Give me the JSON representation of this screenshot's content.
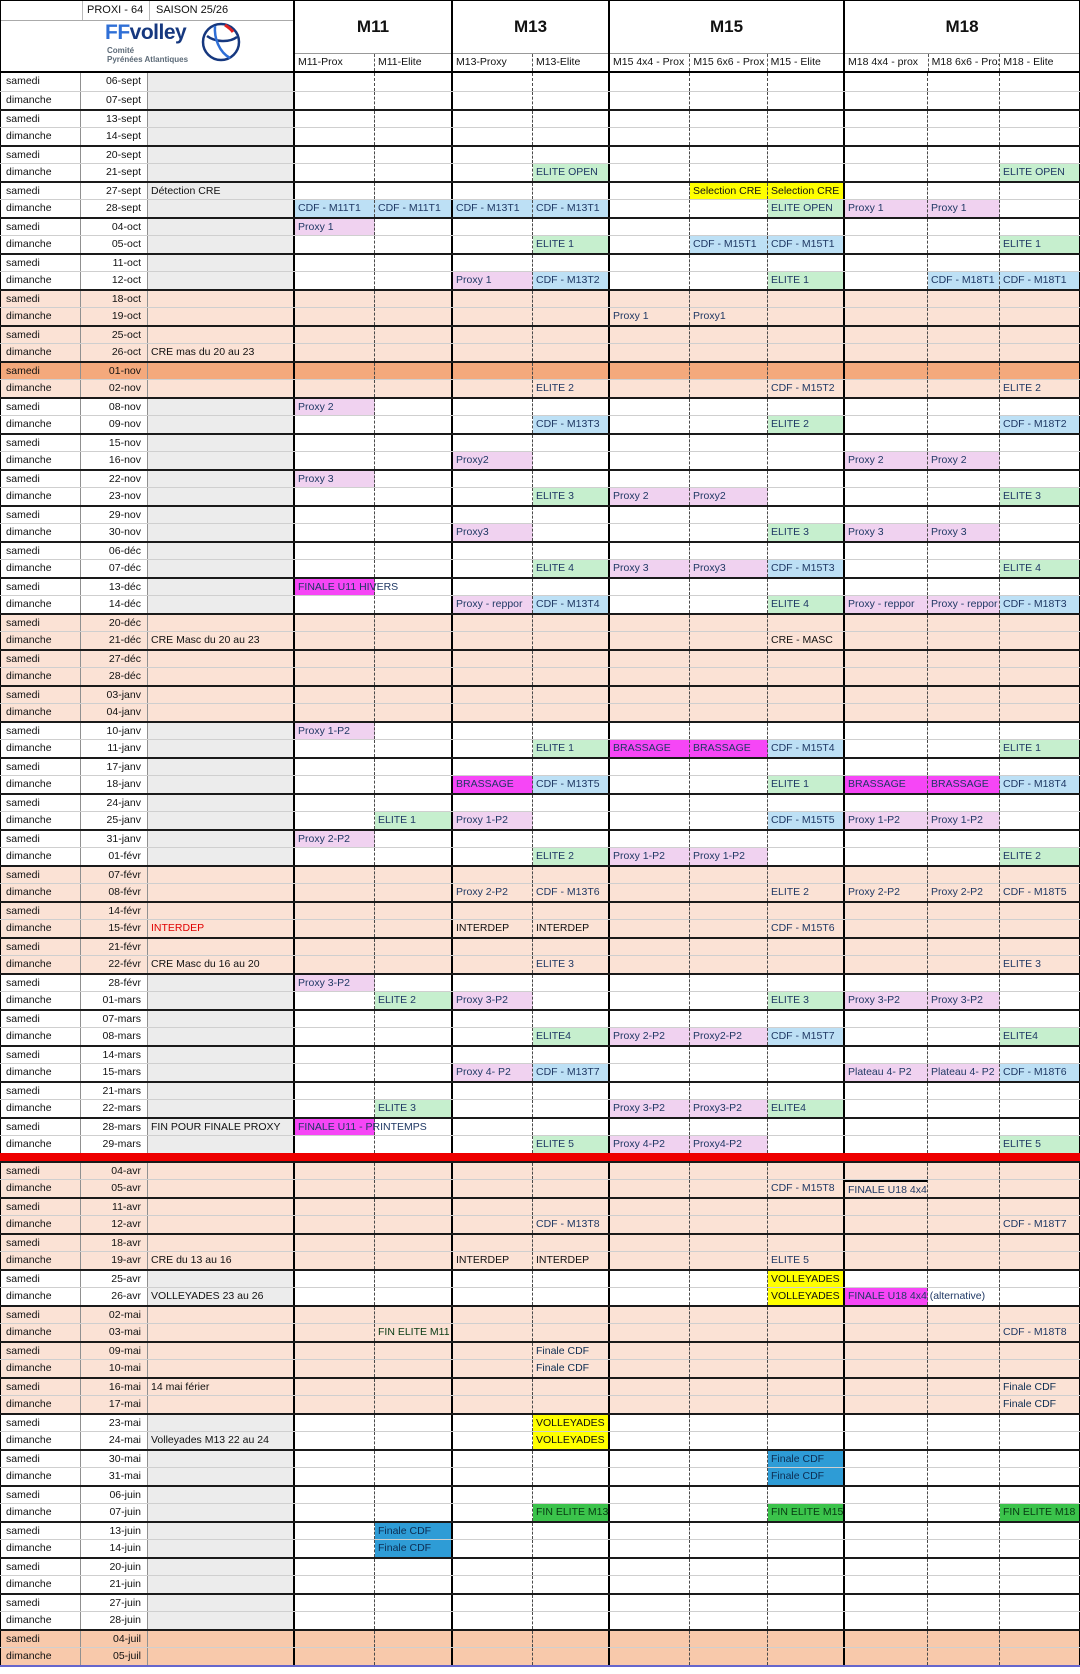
{
  "header": {
    "title_left": "PROXI - 64",
    "title_right": "SAISON 25/26",
    "logo": {
      "brand_ff": "FF",
      "brand_volley": "volley",
      "sub1": "Comité",
      "sub2": "Pyrénées Atlantiques"
    },
    "groups": [
      {
        "label": "M11",
        "cols": [
          "M11-Prox",
          "M11-Elite"
        ]
      },
      {
        "label": "M13",
        "cols": [
          "M13-Proxy",
          "M13-Elite"
        ]
      },
      {
        "label": "M15",
        "cols": [
          "M15 4x4 - Prox",
          "M15 6x6 - Prox",
          "M15 - Elite"
        ]
      },
      {
        "label": "M18",
        "cols": [
          "M18 4x4 - prox",
          "M18 6x6 - Prox",
          "M18 - Elite"
        ]
      }
    ]
  },
  "colors": {
    "vacation": "#fbe2d5",
    "vacation_dark": "#f4a97c",
    "vacation_july": "#f8c9ab",
    "notes_grey": "#ececec",
    "cdf_cell": "#bde0f5",
    "elite_cell": "#c6efce",
    "proxy_cell": "#f0d2f0",
    "finale_magenta": "#f646f6",
    "highlight_yellow": "#ffff00",
    "finale_cdf_blue": "#2e9cd6",
    "fin_elite_green": "#3bc34b",
    "separator_red": "#ee0000"
  },
  "column_keys": [
    "m11p",
    "m11e",
    "m13p",
    "m13e",
    "m15a",
    "m15b",
    "m15e",
    "m18a",
    "m18b",
    "m18e"
  ],
  "separator_before_date": "04-avr",
  "rows": [
    {
      "d": "samedi",
      "t": "06-sept"
    },
    {
      "d": "dimanche",
      "t": "07-sept"
    },
    {
      "d": "samedi",
      "t": "13-sept"
    },
    {
      "d": "dimanche",
      "t": "14-sept"
    },
    {
      "d": "samedi",
      "t": "20-sept"
    },
    {
      "d": "dimanche",
      "t": "21-sept",
      "cells": {
        "m13e": [
          "ELITE OPEN",
          "green"
        ],
        "m18e": [
          "ELITE OPEN",
          "green"
        ]
      }
    },
    {
      "d": "samedi",
      "t": "27-sept",
      "note": [
        "Détection CRE",
        "yellow"
      ],
      "cells": {
        "m15b": [
          "Selection CRE",
          "yellow"
        ],
        "m15e": [
          "Selection CRE",
          "yellow"
        ]
      }
    },
    {
      "d": "dimanche",
      "t": "28-sept",
      "cells": {
        "m11p": [
          "CDF - M11T1",
          "blue"
        ],
        "m11e": [
          "CDF - M11T1",
          "blue"
        ],
        "m13p": [
          "CDF - M13T1",
          "blue"
        ],
        "m13e": [
          "CDF - M13T1",
          "blue"
        ],
        "m15e": [
          "ELITE OPEN",
          "green"
        ],
        "m18a": [
          "Proxy 1",
          "pink"
        ],
        "m18b": [
          "Proxy 1",
          "pink"
        ]
      }
    },
    {
      "d": "samedi",
      "t": "04-oct",
      "cells": {
        "m11p": [
          "Proxy 1",
          "pink"
        ]
      }
    },
    {
      "d": "dimanche",
      "t": "05-oct",
      "cells": {
        "m13e": [
          "ELITE 1",
          "green"
        ],
        "m15b": [
          "CDF - M15T1",
          "blue"
        ],
        "m15e": [
          "CDF - M15T1",
          "blue"
        ],
        "m18e": [
          "ELITE 1",
          "green"
        ]
      }
    },
    {
      "d": "samedi",
      "t": "11-oct"
    },
    {
      "d": "dimanche",
      "t": "12-oct",
      "cells": {
        "m13p": [
          "Proxy 1",
          "pink"
        ],
        "m13e": [
          "CDF - M13T2",
          "blue"
        ],
        "m15e": [
          "ELITE 1",
          "green"
        ],
        "m18b": [
          "CDF - M18T1",
          "blue"
        ],
        "m18e": [
          "CDF - M18T1",
          "blue"
        ]
      }
    },
    {
      "d": "samedi",
      "t": "18-oct",
      "bg": "vac"
    },
    {
      "d": "dimanche",
      "t": "19-oct",
      "bg": "vac",
      "cells": {
        "m15a": [
          "Proxy 1",
          "pink"
        ],
        "m15b": [
          "Proxy1",
          "pink"
        ]
      }
    },
    {
      "d": "samedi",
      "t": "25-oct",
      "bg": "vac"
    },
    {
      "d": "dimanche",
      "t": "26-oct",
      "bg": "vac",
      "note": [
        "CRE mas du 20 au 23",
        "yellow"
      ]
    },
    {
      "d": "samedi",
      "t": "01-nov",
      "bg": "vacdark"
    },
    {
      "d": "dimanche",
      "t": "02-nov",
      "bg": "vac",
      "cells": {
        "m13e": [
          "ELITE 2",
          "green"
        ],
        "m15e": [
          "CDF - M15T2",
          "blue"
        ],
        "m18e": [
          "ELITE 2",
          "green"
        ]
      }
    },
    {
      "d": "samedi",
      "t": "08-nov",
      "cells": {
        "m11p": [
          "Proxy 2",
          "pink"
        ]
      }
    },
    {
      "d": "dimanche",
      "t": "09-nov",
      "cells": {
        "m13e": [
          "CDF - M13T3",
          "blue"
        ],
        "m15e": [
          "ELITE 2",
          "green"
        ],
        "m18e": [
          "CDF - M18T2",
          "blue"
        ]
      }
    },
    {
      "d": "samedi",
      "t": "15-nov"
    },
    {
      "d": "dimanche",
      "t": "16-nov",
      "cells": {
        "m13p": [
          "Proxy2",
          "pink"
        ],
        "m18a": [
          "Proxy 2",
          "pink"
        ],
        "m18b": [
          "Proxy 2",
          "pink"
        ]
      }
    },
    {
      "d": "samedi",
      "t": "22-nov",
      "cells": {
        "m11p": [
          "Proxy 3",
          "pink"
        ]
      }
    },
    {
      "d": "dimanche",
      "t": "23-nov",
      "cells": {
        "m13e": [
          "ELITE 3",
          "green"
        ],
        "m15a": [
          "Proxy 2",
          "pink"
        ],
        "m15b": [
          "Proxy2",
          "pink"
        ],
        "m18e": [
          "ELITE 3",
          "green"
        ]
      }
    },
    {
      "d": "samedi",
      "t": "29-nov"
    },
    {
      "d": "dimanche",
      "t": "30-nov",
      "cells": {
        "m13p": [
          "Proxy3",
          "pink"
        ],
        "m15e": [
          "ELITE 3",
          "green"
        ],
        "m18a": [
          "Proxy 3",
          "pink"
        ],
        "m18b": [
          "Proxy 3",
          "pink"
        ]
      }
    },
    {
      "d": "samedi",
      "t": "06-déc"
    },
    {
      "d": "dimanche",
      "t": "07-déc",
      "cells": {
        "m13e": [
          "ELITE 4",
          "green"
        ],
        "m15a": [
          "Proxy 3",
          "pink"
        ],
        "m15b": [
          "Proxy3",
          "pink"
        ],
        "m15e": [
          "CDF - M15T3",
          "blue"
        ],
        "m18e": [
          "ELITE 4",
          "green"
        ]
      }
    },
    {
      "d": "samedi",
      "t": "13-déc",
      "cells": {
        "m11p": [
          "FINALE U11 HIVERS",
          "magenta",
          "spill"
        ]
      }
    },
    {
      "d": "dimanche",
      "t": "14-déc",
      "cells": {
        "m13p": [
          "Proxy - reppor",
          "pink"
        ],
        "m13e": [
          "CDF - M13T4",
          "blue"
        ],
        "m15e": [
          "ELITE 4",
          "green"
        ],
        "m18a": [
          "Proxy - reppor",
          "pink"
        ],
        "m18b": [
          "Proxy - reppor",
          "pink"
        ],
        "m18e": [
          "CDF - M18T3",
          "blue"
        ]
      }
    },
    {
      "d": "samedi",
      "t": "20-déc",
      "bg": "vac"
    },
    {
      "d": "dimanche",
      "t": "21-déc",
      "bg": "vac",
      "note": [
        "CRE Masc du 20 au 23",
        "yellow"
      ],
      "cells": {
        "m15e": [
          "CRE - MASC",
          "yellow"
        ]
      }
    },
    {
      "d": "samedi",
      "t": "27-déc",
      "bg": "vac"
    },
    {
      "d": "dimanche",
      "t": "28-déc",
      "bg": "vac"
    },
    {
      "d": "samedi",
      "t": "03-janv",
      "bg": "vac"
    },
    {
      "d": "dimanche",
      "t": "04-janv",
      "bg": "vac"
    },
    {
      "d": "samedi",
      "t": "10-janv",
      "cells": {
        "m11p": [
          "Proxy 1-P2",
          "pink"
        ]
      }
    },
    {
      "d": "dimanche",
      "t": "11-janv",
      "cells": {
        "m13e": [
          "ELITE 1",
          "green"
        ],
        "m15a": [
          "BRASSAGE",
          "magenta"
        ],
        "m15b": [
          "BRASSAGE",
          "magenta"
        ],
        "m15e": [
          "CDF - M15T4",
          "blue"
        ],
        "m18e": [
          "ELITE 1",
          "green"
        ]
      }
    },
    {
      "d": "samedi",
      "t": "17-janv"
    },
    {
      "d": "dimanche",
      "t": "18-janv",
      "cells": {
        "m13p": [
          "BRASSAGE",
          "magenta"
        ],
        "m13e": [
          "CDF - M13T5",
          "blue"
        ],
        "m15e": [
          "ELITE 1",
          "green"
        ],
        "m18a": [
          "BRASSAGE",
          "magenta"
        ],
        "m18b": [
          "BRASSAGE",
          "magenta"
        ],
        "m18e": [
          "CDF - M18T4",
          "blue"
        ]
      }
    },
    {
      "d": "samedi",
      "t": "24-janv"
    },
    {
      "d": "dimanche",
      "t": "25-janv",
      "cells": {
        "m11e": [
          "ELITE 1",
          "green"
        ],
        "m13p": [
          "Proxy 1-P2",
          "pink"
        ],
        "m15e": [
          "CDF - M15T5",
          "blue"
        ],
        "m18a": [
          "Proxy 1-P2",
          "pink"
        ],
        "m18b": [
          "Proxy 1-P2",
          "pink"
        ]
      }
    },
    {
      "d": "samedi",
      "t": "31-janv",
      "cells": {
        "m11p": [
          "Proxy 2-P2",
          "pink"
        ]
      }
    },
    {
      "d": "dimanche",
      "t": "01-févr",
      "cells": {
        "m13e": [
          "ELITE 2",
          "green"
        ],
        "m15a": [
          "Proxy 1-P2",
          "pink"
        ],
        "m15b": [
          "Proxy 1-P2",
          "pink"
        ],
        "m18e": [
          "ELITE 2",
          "green"
        ]
      }
    },
    {
      "d": "samedi",
      "t": "07-févr",
      "bg": "vac"
    },
    {
      "d": "dimanche",
      "t": "08-févr",
      "bg": "vac",
      "cells": {
        "m13p": [
          "Proxy 2-P2",
          "pink"
        ],
        "m13e": [
          "CDF - M13T6",
          "blue"
        ],
        "m15e": [
          "ELITE 2",
          "green"
        ],
        "m18a": [
          "Proxy 2-P2",
          "pink"
        ],
        "m18b": [
          "Proxy 2-P2",
          "pink"
        ],
        "m18e": [
          "CDF - M18T5",
          "blue"
        ]
      }
    },
    {
      "d": "samedi",
      "t": "14-févr",
      "bg": "vac"
    },
    {
      "d": "dimanche",
      "t": "15-févr",
      "bg": "vac",
      "note": [
        "INTERDEP",
        "yellowred"
      ],
      "cells": {
        "m13p": [
          "INTERDEP",
          "yellow"
        ],
        "m13e": [
          "INTERDEP",
          "yellow"
        ],
        "m15e": [
          "CDF - M15T6",
          "blue"
        ]
      }
    },
    {
      "d": "samedi",
      "t": "21-févr",
      "bg": "vac"
    },
    {
      "d": "dimanche",
      "t": "22-févr",
      "bg": "vac",
      "note": [
        "CRE Masc du 16 au 20",
        "yellow"
      ],
      "cells": {
        "m13e": [
          "ELITE 3",
          "green"
        ],
        "m18e": [
          "ELITE 3",
          "green"
        ]
      }
    },
    {
      "d": "samedi",
      "t": "28-févr",
      "cells": {
        "m11p": [
          "Proxy 3-P2",
          "pink"
        ]
      }
    },
    {
      "d": "dimanche",
      "t": "01-mars",
      "cells": {
        "m11e": [
          "ELITE 2",
          "green"
        ],
        "m13p": [
          "Proxy 3-P2",
          "pink"
        ],
        "m15e": [
          "ELITE 3",
          "green"
        ],
        "m18a": [
          "Proxy 3-P2",
          "pink"
        ],
        "m18b": [
          "Proxy 3-P2",
          "pink"
        ]
      }
    },
    {
      "d": "samedi",
      "t": "07-mars"
    },
    {
      "d": "dimanche",
      "t": "08-mars",
      "cells": {
        "m13e": [
          "ELITE4",
          "green"
        ],
        "m15a": [
          "Proxy 2-P2",
          "pink"
        ],
        "m15b": [
          "Proxy2-P2",
          "pink"
        ],
        "m15e": [
          "CDF - M15T7",
          "blue"
        ],
        "m18e": [
          "ELITE4",
          "green"
        ]
      }
    },
    {
      "d": "samedi",
      "t": "14-mars"
    },
    {
      "d": "dimanche",
      "t": "15-mars",
      "cells": {
        "m13p": [
          "Proxy 4- P2",
          "pink"
        ],
        "m13e": [
          "CDF - M13T7",
          "blue"
        ],
        "m18a": [
          "Plateau 4- P2",
          "pink"
        ],
        "m18b": [
          "Plateau 4- P2",
          "pink"
        ],
        "m18e": [
          "CDF - M18T6",
          "blue"
        ]
      }
    },
    {
      "d": "samedi",
      "t": "21-mars"
    },
    {
      "d": "dimanche",
      "t": "22-mars",
      "cells": {
        "m11e": [
          "ELITE 3",
          "green"
        ],
        "m15a": [
          "Proxy 3-P2",
          "pink"
        ],
        "m15b": [
          "Proxy3-P2",
          "pink"
        ],
        "m15e": [
          "ELITE4",
          "green"
        ]
      }
    },
    {
      "d": "samedi",
      "t": "28-mars",
      "note": [
        "FIN POUR FINALE PROXY",
        "yellow"
      ],
      "cells": {
        "m11p": [
          "FINALE U11 - PRINTEMPS",
          "magenta",
          "spill"
        ]
      }
    },
    {
      "d": "dimanche",
      "t": "29-mars",
      "cells": {
        "m13e": [
          "ELITE 5",
          "green"
        ],
        "m15a": [
          "Proxy 4-P2",
          "pink"
        ],
        "m15b": [
          "Proxy4-P2",
          "pink"
        ],
        "m18e": [
          "ELITE 5",
          "green"
        ]
      }
    },
    {
      "d": "samedi",
      "t": "04-avr",
      "bg": "vac"
    },
    {
      "d": "dimanche",
      "t": "05-avr",
      "bg": "vac",
      "cells": {
        "m15e": [
          "CDF - M15T8",
          "blue"
        ],
        "m18a": [
          "FINALE U18 4x4",
          "magenta",
          "topline"
        ]
      }
    },
    {
      "d": "samedi",
      "t": "11-avr",
      "bg": "vac"
    },
    {
      "d": "dimanche",
      "t": "12-avr",
      "bg": "vac",
      "cells": {
        "m13e": [
          "CDF - M13T8",
          "blue"
        ],
        "m18e": [
          "CDF - M18T7",
          "blue"
        ]
      }
    },
    {
      "d": "samedi",
      "t": "18-avr",
      "bg": "vac"
    },
    {
      "d": "dimanche",
      "t": "19-avr",
      "bg": "vac",
      "note": [
        "CRE du 13 au 16",
        "yellow"
      ],
      "cells": {
        "m13p": [
          "INTERDEP",
          "yellow"
        ],
        "m13e": [
          "INTERDEP",
          "yellow"
        ],
        "m15e": [
          "ELITE 5",
          "green"
        ]
      }
    },
    {
      "d": "samedi",
      "t": "25-avr",
      "cells": {
        "m15e": [
          "VOLLEYADES",
          "yellow"
        ]
      }
    },
    {
      "d": "dimanche",
      "t": "26-avr",
      "note": [
        "VOLLEYADES 23 au 26",
        "yellow"
      ],
      "cells": {
        "m15e": [
          "VOLLEYADES",
          "yellow"
        ],
        "m18a": [
          "FINALE U18 4x4  (alternative)",
          "magenta",
          "spill"
        ]
      }
    },
    {
      "d": "samedi",
      "t": "02-mai",
      "bg": "vac"
    },
    {
      "d": "dimanche",
      "t": "03-mai",
      "bg": "vac",
      "cells": {
        "m11e": [
          "FIN ELITE M11",
          "fin"
        ],
        "m18e": [
          "CDF - M18T8",
          "blue"
        ]
      }
    },
    {
      "d": "samedi",
      "t": "09-mai",
      "bg": "vac",
      "cells": {
        "m13e": [
          "Finale CDF",
          "cdf"
        ]
      }
    },
    {
      "d": "dimanche",
      "t": "10-mai",
      "bg": "vac",
      "cells": {
        "m13e": [
          "Finale CDF",
          "cdf"
        ]
      }
    },
    {
      "d": "samedi",
      "t": "16-mai",
      "bg": "vac",
      "note": [
        "14 mai férier",
        "plain"
      ],
      "cells": {
        "m18e": [
          "Finale CDF",
          "cdf"
        ]
      }
    },
    {
      "d": "dimanche",
      "t": "17-mai",
      "bg": "vac",
      "cells": {
        "m18e": [
          "Finale CDF",
          "cdf"
        ]
      }
    },
    {
      "d": "samedi",
      "t": "23-mai",
      "cells": {
        "m13e": [
          "VOLLEYADES",
          "yellow"
        ]
      }
    },
    {
      "d": "dimanche",
      "t": "24-mai",
      "note": [
        "Volleyades M13 22 au 24",
        "yellow"
      ],
      "cells": {
        "m13e": [
          "VOLLEYADES",
          "yellow"
        ]
      }
    },
    {
      "d": "samedi",
      "t": "30-mai",
      "cells": {
        "m15e": [
          "Finale CDF",
          "cdf"
        ]
      }
    },
    {
      "d": "dimanche",
      "t": "31-mai",
      "cells": {
        "m15e": [
          "Finale CDF",
          "cdf"
        ]
      }
    },
    {
      "d": "samedi",
      "t": "06-juin"
    },
    {
      "d": "dimanche",
      "t": "07-juin",
      "cells": {
        "m13e": [
          "FIN ELITE M13",
          "fin"
        ],
        "m15e": [
          "FIN ELITE M15",
          "fin"
        ],
        "m18e": [
          "FIN ELITE M18",
          "fin"
        ]
      }
    },
    {
      "d": "samedi",
      "t": "13-juin",
      "cells": {
        "m11e": [
          "Finale CDF",
          "cdf"
        ]
      }
    },
    {
      "d": "dimanche",
      "t": "14-juin",
      "cells": {
        "m11e": [
          "Finale CDF",
          "cdf"
        ]
      }
    },
    {
      "d": "samedi",
      "t": "20-juin"
    },
    {
      "d": "dimanche",
      "t": "21-juin"
    },
    {
      "d": "samedi",
      "t": "27-juin"
    },
    {
      "d": "dimanche",
      "t": "28-juin"
    },
    {
      "d": "samedi",
      "t": "04-juil",
      "bg": "vac2"
    },
    {
      "d": "dimanche",
      "t": "05-juil",
      "bg": "vac2"
    }
  ]
}
